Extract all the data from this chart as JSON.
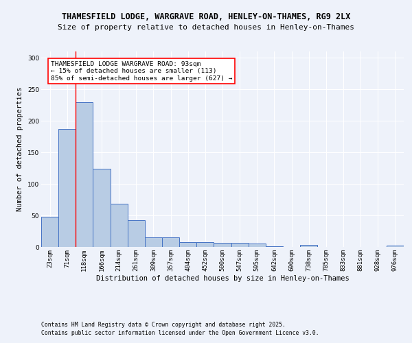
{
  "title1": "THAMESFIELD LODGE, WARGRAVE ROAD, HENLEY-ON-THAMES, RG9 2LX",
  "title2": "Size of property relative to detached houses in Henley-on-Thames",
  "xlabel": "Distribution of detached houses by size in Henley-on-Thames",
  "ylabel": "Number of detached properties",
  "categories": [
    "23sqm",
    "71sqm",
    "118sqm",
    "166sqm",
    "214sqm",
    "261sqm",
    "309sqm",
    "357sqm",
    "404sqm",
    "452sqm",
    "500sqm",
    "547sqm",
    "595sqm",
    "642sqm",
    "690sqm",
    "738sqm",
    "785sqm",
    "833sqm",
    "881sqm",
    "928sqm",
    "976sqm"
  ],
  "values": [
    48,
    187,
    230,
    124,
    68,
    42,
    15,
    15,
    8,
    8,
    7,
    6,
    5,
    1,
    0,
    3,
    0,
    0,
    0,
    0,
    2
  ],
  "bar_color": "#b8cce4",
  "bar_edge_color": "#4472c4",
  "red_line_x": 1.5,
  "annotation_text": "THAMESFIELD LODGE WARGRAVE ROAD: 93sqm\n← 15% of detached houses are smaller (113)\n85% of semi-detached houses are larger (627) →",
  "annotation_box_color": "#ffffff",
  "annotation_box_edge_color": "#ff0000",
  "ylim": [
    0,
    310
  ],
  "yticks": [
    0,
    50,
    100,
    150,
    200,
    250,
    300
  ],
  "footer1": "Contains HM Land Registry data © Crown copyright and database right 2025.",
  "footer2": "Contains public sector information licensed under the Open Government Licence v3.0.",
  "background_color": "#eef2fa",
  "grid_color": "#ffffff",
  "title_fontsize": 8.5,
  "subtitle_fontsize": 8.0,
  "axis_label_fontsize": 7.5,
  "tick_fontsize": 6.5,
  "annotation_fontsize": 6.8,
  "footer_fontsize": 5.8
}
